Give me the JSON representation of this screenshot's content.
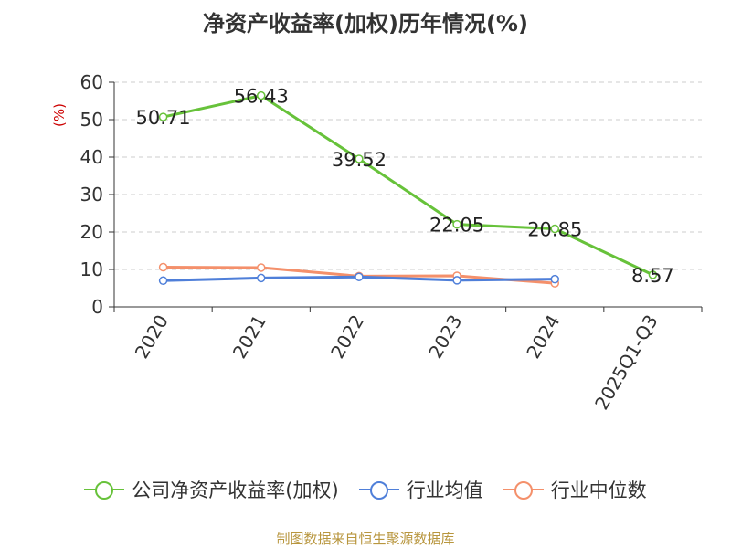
{
  "footer_text": "制图数据来自恒生聚源数据库",
  "chart_data": {
    "type": "line",
    "title": "净资产收益率(加权)历年情况(%)",
    "ylabel": "(%)",
    "xlabel": "",
    "categories": [
      "2020",
      "2021",
      "2022",
      "2023",
      "2024",
      "2025Q1-Q3"
    ],
    "ylim": [
      0,
      60
    ],
    "yticks": [
      0,
      10,
      20,
      30,
      40,
      50,
      60
    ],
    "grid": true,
    "legend_position": "bottom",
    "series": [
      {
        "name": "公司净资产收益率(加权)",
        "color": "#67c23a",
        "values": [
          50.71,
          56.43,
          39.52,
          22.05,
          20.85,
          8.57
        ],
        "labels": [
          "50.71",
          "56.43",
          "39.52",
          "22.05",
          "20.85",
          "8.57"
        ]
      },
      {
        "name": "行业均值",
        "color": "#4f7fd9",
        "values": [
          7.0,
          7.7,
          8.0,
          7.1,
          7.4,
          null
        ]
      },
      {
        "name": "行业中位数",
        "color": "#f4906b",
        "values": [
          10.6,
          10.5,
          8.2,
          8.3,
          6.3,
          null
        ]
      }
    ]
  }
}
